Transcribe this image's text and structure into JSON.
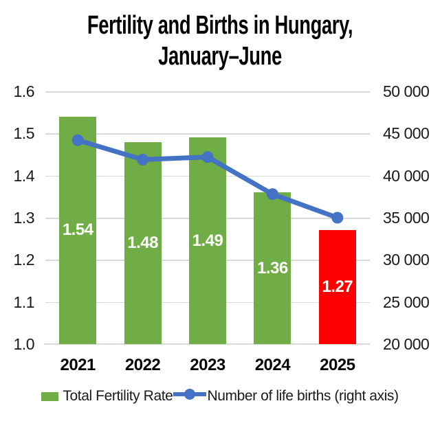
{
  "title": {
    "line1": "Fertility and Births in Hungary,",
    "line2": "January–June"
  },
  "chart_data": {
    "type": "combo-bar-line",
    "categories": [
      "2021",
      "2022",
      "2023",
      "2024",
      "2025"
    ],
    "series": [
      {
        "name": "Total Fertility Rate",
        "type": "bar",
        "axis": "left",
        "values": [
          1.54,
          1.48,
          1.49,
          1.36,
          1.27
        ],
        "labels": [
          "1.54",
          "1.48",
          "1.49",
          "1.36",
          "1.27"
        ],
        "bar_colors": [
          "#70AD47",
          "#70AD47",
          "#70AD47",
          "#70AD47",
          "#FF0000"
        ]
      },
      {
        "name": "Number of life births (right axis)",
        "type": "line",
        "axis": "right",
        "values": [
          44200,
          41900,
          42200,
          37800,
          35000
        ],
        "color": "#4472C4"
      }
    ],
    "left_axis": {
      "min": 1.0,
      "max": 1.6,
      "step": 0.1,
      "ticks": [
        "1.6",
        "1.5",
        "1.4",
        "1.3",
        "1.2",
        "1.1",
        "1.0"
      ]
    },
    "right_axis": {
      "min": 20000,
      "max": 50000,
      "step": 5000,
      "ticks": [
        "50 000",
        "45 000",
        "40 000",
        "35 000",
        "30 000",
        "25 000",
        "20 000"
      ]
    },
    "grid": true,
    "legend_position": "bottom"
  },
  "legend": {
    "bar_label": "Total Fertility Rate",
    "line_label": "Number of life births (right axis)"
  },
  "colors": {
    "bar_green": "#70AD47",
    "bar_red": "#FF0000",
    "line_blue": "#4472C4",
    "gridline": "#D9D9D9"
  }
}
